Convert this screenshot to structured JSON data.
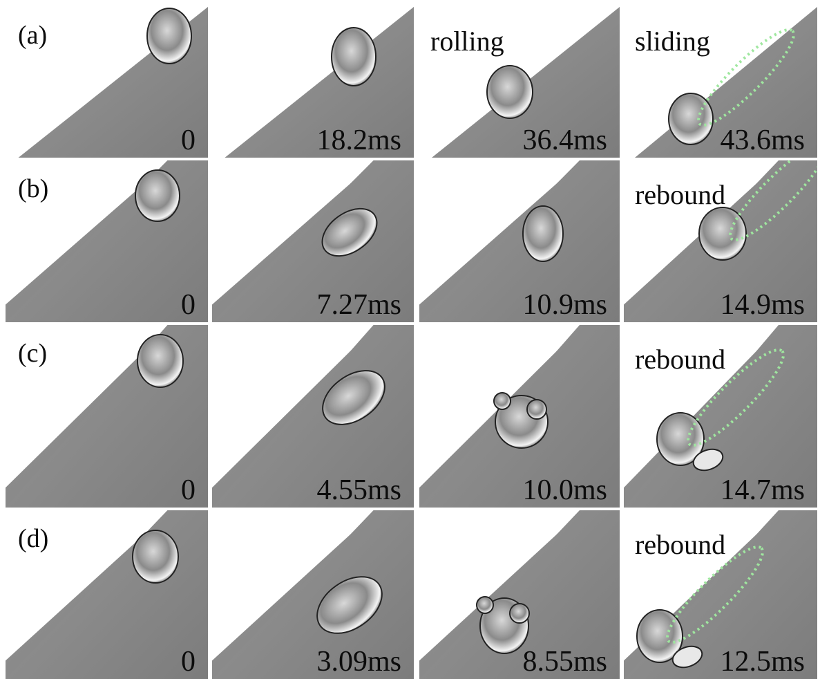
{
  "rows": [
    {
      "label": "(a)",
      "frames": [
        {
          "time": "0",
          "caption": ""
        },
        {
          "time": "18.2ms",
          "caption": ""
        },
        {
          "time": "36.4ms",
          "caption": "rolling"
        },
        {
          "time": "43.6ms",
          "caption": "sliding"
        }
      ]
    },
    {
      "label": "(b)",
      "frames": [
        {
          "time": "0",
          "caption": ""
        },
        {
          "time": "7.27ms",
          "caption": ""
        },
        {
          "time": "10.9ms",
          "caption": ""
        },
        {
          "time": "14.9ms",
          "caption": "rebound"
        }
      ]
    },
    {
      "label": "(c)",
      "frames": [
        {
          "time": "0",
          "caption": ""
        },
        {
          "time": "4.55ms",
          "caption": ""
        },
        {
          "time": "10.0ms",
          "caption": ""
        },
        {
          "time": "14.7ms",
          "caption": "rebound"
        }
      ]
    },
    {
      "label": "(d)",
      "frames": [
        {
          "time": "0",
          "caption": ""
        },
        {
          "time": "3.09ms",
          "caption": ""
        },
        {
          "time": "8.55ms",
          "caption": ""
        },
        {
          "time": "12.5ms",
          "caption": "rebound"
        }
      ]
    }
  ],
  "colors": {
    "surface": "#7c7c7c",
    "surface_light": "#9a9a9a",
    "trail": "#9fe79f",
    "text": "#0c0c0c"
  }
}
